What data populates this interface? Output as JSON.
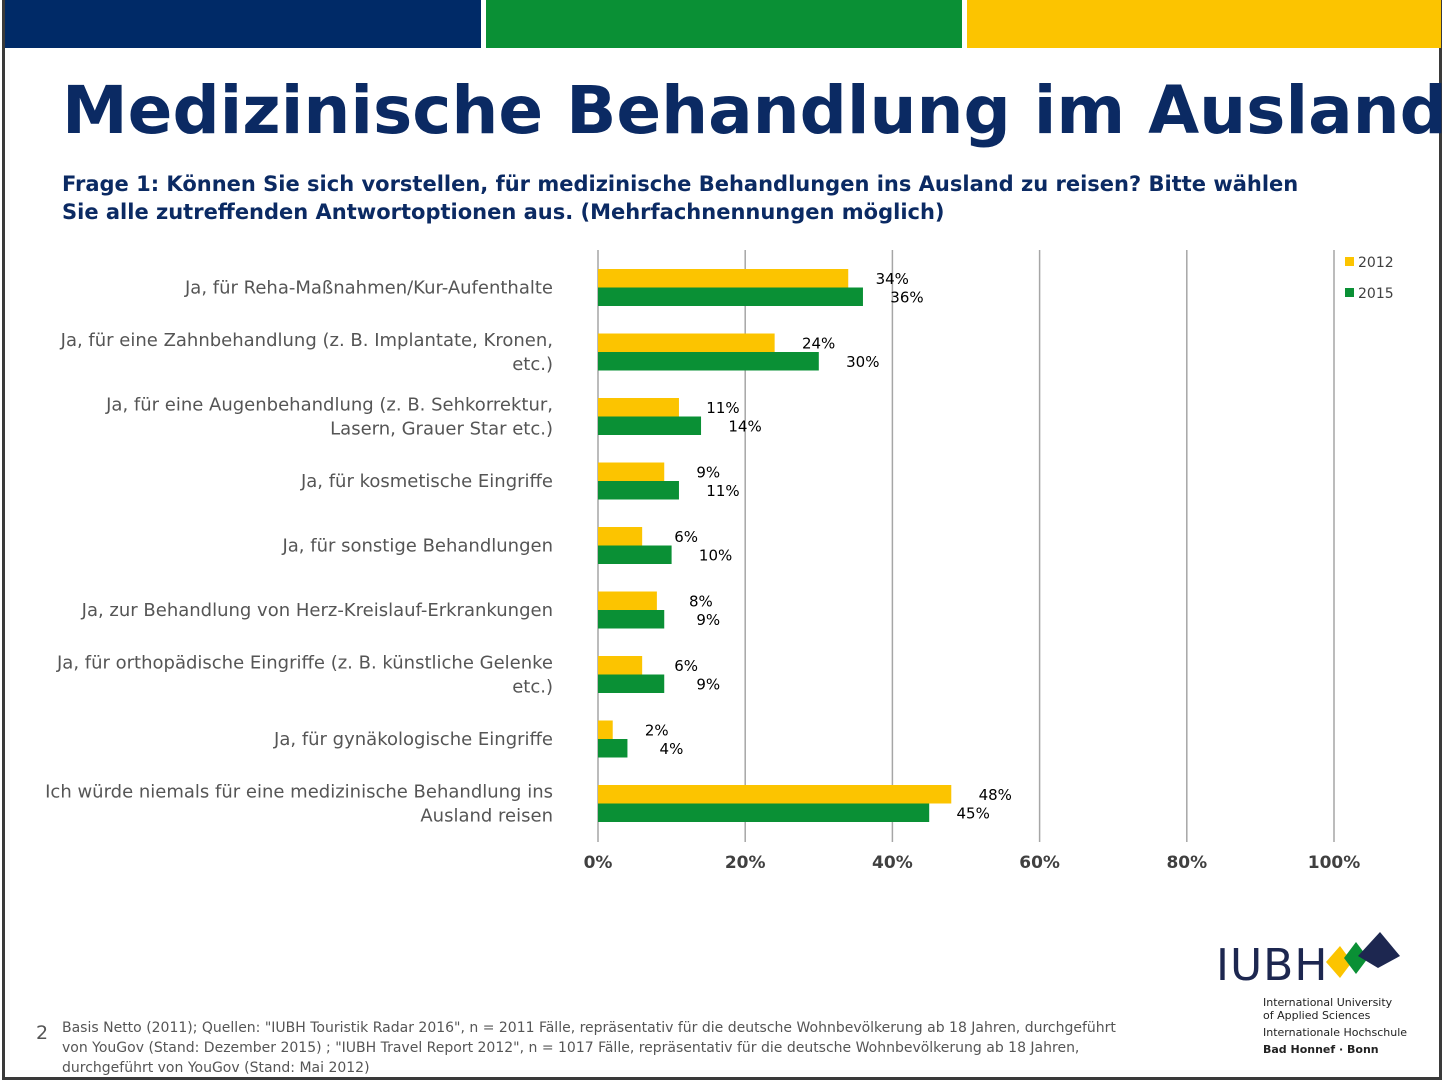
{
  "header": {
    "title": "Medizinische Behandlung im Ausland",
    "question": "Frage 1: Können Sie sich vorstellen, für medizinische Behandlungen ins Ausland zu reisen? Bitte wählen Sie alle zutreffenden Antwortoptionen aus. (Mehrfachnennungen möglich)"
  },
  "colors": {
    "band_blue": "#002a67",
    "band_green": "#0a9035",
    "band_yellow": "#fcc400",
    "series_2012": "#fcc400",
    "series_2015": "#0a9035",
    "title": "#0b2a63"
  },
  "chart_data": {
    "type": "bar",
    "orientation": "horizontal",
    "categories": [
      [
        "Ja, für Reha-Maßnahmen/Kur-Aufenthalte"
      ],
      [
        "Ja, für eine Zahnbehandlung (z. B. Implantate, Kronen,",
        "etc.)"
      ],
      [
        "Ja, für eine Augenbehandlung (z. B. Sehkorrektur,",
        "Lasern, Grauer Star etc.)"
      ],
      [
        "Ja, für kosmetische Eingriffe"
      ],
      [
        "Ja, für sonstige Behandlungen"
      ],
      [
        "Ja, zur Behandlung von Herz-Kreislauf-Erkrankungen"
      ],
      [
        "Ja, für orthopädische Eingriffe (z. B. künstliche Gelenke",
        "etc.)"
      ],
      [
        "Ja, für gynäkologische Eingriffe"
      ],
      [
        "Ich würde niemals für eine medizinische Behandlung ins",
        "Ausland reisen"
      ]
    ],
    "series": [
      {
        "name": "2012",
        "values": [
          34,
          24,
          11,
          9,
          6,
          8,
          6,
          2,
          48
        ],
        "labels": [
          "34%",
          "24%",
          "11%",
          "9%",
          "6%",
          "8%",
          "6%",
          "2%",
          "48%"
        ]
      },
      {
        "name": "2015",
        "values": [
          36,
          30,
          14,
          11,
          10,
          9,
          9,
          4,
          45
        ],
        "labels": [
          "36%",
          "30%",
          "14%",
          "11%",
          "10%",
          "9%",
          "9%",
          "4%",
          "45%"
        ]
      }
    ],
    "xlim": [
      0,
      100
    ],
    "xticks": [
      "0%",
      "20%",
      "40%",
      "60%",
      "80%",
      "100%"
    ],
    "grid": true,
    "legend_position": "top-right"
  },
  "logo": {
    "wordmark": "IUBH",
    "line1": "International University",
    "line2": "of Applied Sciences",
    "line3": "Internationale Hochschule",
    "line4": "Bad Honnef · Bonn"
  },
  "footer": {
    "page_number": "2",
    "source": "Basis Netto (2011); Quellen: \"IUBH Touristik Radar 2016\", n = 2011 Fälle, repräsentativ für die deutsche Wohnbevölkerung ab 18 Jahren, durchgeführt von YouGov (Stand: Dezember 2015) ; \"IUBH Travel Report 2012\", n = 1017 Fälle, repräsentativ für die deutsche Wohnbevölkerung ab 18 Jahren, durchgeführt von YouGov (Stand: Mai 2012)"
  }
}
